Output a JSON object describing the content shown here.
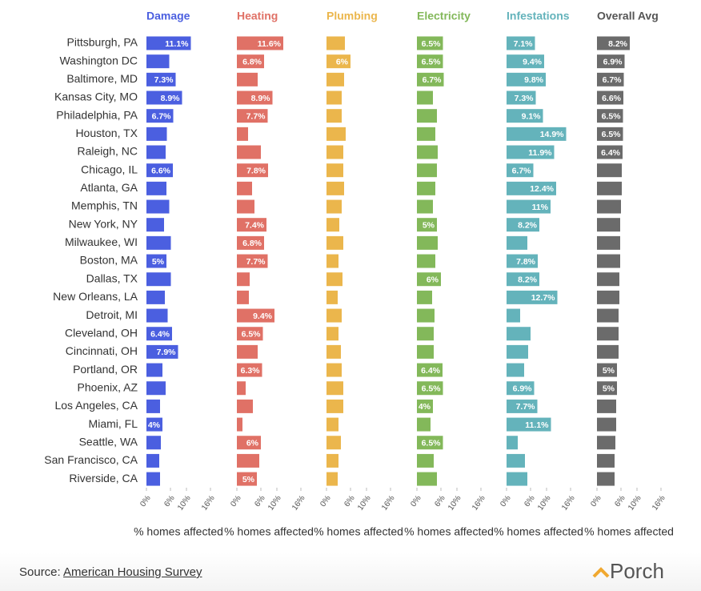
{
  "chart_data": {
    "type": "bar",
    "orientation": "horizontal",
    "categories": [
      "Pittsburgh, PA",
      "Washington DC",
      "Baltimore, MD",
      "Kansas City, MO",
      "Philadelphia, PA",
      "Houston, TX",
      "Raleigh, NC",
      "Chicago, IL",
      "Atlanta, GA",
      "Memphis, TN",
      "New York, NY",
      "Milwaukee, WI",
      "Boston, MA",
      "Dallas, TX",
      "New Orleans, LA",
      "Detroit, MI",
      "Cleveland, OH",
      "Cincinnati, OH",
      "Portland, OR",
      "Phoenix, AZ",
      "Los Angeles, CA",
      "Miami, FL",
      "Seattle, WA",
      "San Francisco, CA",
      "Riverside, CA"
    ],
    "series": [
      {
        "name": "Damage",
        "color": "#4b5fe0",
        "values": [
          11.1,
          5.7,
          7.3,
          8.9,
          6.7,
          5.1,
          4.8,
          6.6,
          5.0,
          5.7,
          4.4,
          6.1,
          5,
          6.1,
          4.6,
          5.3,
          6.4,
          7.9,
          4.0,
          4.8,
          3.4,
          4,
          3.6,
          3.2,
          3.4
        ],
        "value_labels": [
          "11.1%",
          null,
          "7.3%",
          "8.9%",
          "6.7%",
          null,
          null,
          "6.6%",
          null,
          null,
          null,
          null,
          "5%",
          null,
          null,
          null,
          "6.4%",
          "7.9%",
          null,
          null,
          null,
          "4%",
          null,
          null,
          null
        ]
      },
      {
        "name": "Heating",
        "color": "#e07166",
        "values": [
          11.6,
          6.8,
          5.2,
          8.9,
          7.7,
          2.8,
          6.0,
          7.8,
          3.8,
          4.4,
          7.4,
          6.8,
          7.7,
          3.2,
          3.0,
          9.4,
          6.5,
          5.2,
          6.3,
          2.2,
          4.0,
          1.4,
          6,
          5.6,
          5
        ],
        "value_labels": [
          "11.6%",
          "6.8%",
          null,
          "8.9%",
          "7.7%",
          null,
          null,
          "7.8%",
          null,
          null,
          "7.4%",
          "6.8%",
          "7.7%",
          null,
          null,
          "9.4%",
          "6.5%",
          null,
          "6.3%",
          null,
          null,
          null,
          "6%",
          null,
          "5%"
        ]
      },
      {
        "name": "Plumbing",
        "color": "#ebb64c",
        "values": [
          4.6,
          6,
          4.4,
          3.8,
          3.8,
          4.8,
          4.2,
          4.2,
          4.4,
          3.8,
          3.2,
          4.2,
          3.0,
          4.0,
          2.8,
          3.8,
          3.0,
          3.6,
          3.8,
          4.2,
          4.2,
          3.0,
          3.6,
          3.0,
          2.8
        ],
        "value_labels": [
          null,
          "6%",
          null,
          null,
          null,
          null,
          null,
          null,
          null,
          null,
          null,
          null,
          null,
          null,
          null,
          null,
          null,
          null,
          null,
          null,
          null,
          null,
          null,
          null,
          null
        ]
      },
      {
        "name": "Electricity",
        "color": "#83b85a",
        "values": [
          6.5,
          6.5,
          6.7,
          4.0,
          5.0,
          4.6,
          5.2,
          5.0,
          4.6,
          4.0,
          5,
          5.2,
          4.6,
          6,
          3.8,
          4.4,
          4.2,
          4.2,
          6.4,
          6.5,
          4,
          3.4,
          6.5,
          4.2,
          5.0
        ],
        "value_labels": [
          "6.5%",
          "6.5%",
          "6.7%",
          null,
          null,
          null,
          null,
          null,
          null,
          null,
          "5%",
          null,
          null,
          "6%",
          null,
          null,
          null,
          null,
          "6.4%",
          "6.5%",
          "4%",
          null,
          "6.5%",
          null,
          null
        ]
      },
      {
        "name": "Infestations",
        "color": "#64b3bb",
        "values": [
          7.1,
          9.4,
          9.8,
          7.3,
          9.1,
          14.9,
          11.9,
          6.7,
          12.4,
          11,
          8.2,
          5.2,
          7.8,
          8.2,
          12.7,
          3.4,
          6.0,
          5.4,
          4.4,
          6.9,
          7.7,
          11.1,
          2.8,
          4.6,
          5.2
        ],
        "value_labels": [
          "7.1%",
          "9.4%",
          "9.8%",
          "7.3%",
          "9.1%",
          "14.9%",
          "11.9%",
          "6.7%",
          "12.4%",
          "11%",
          "8.2%",
          null,
          "7.8%",
          "8.2%",
          "12.7%",
          null,
          null,
          null,
          null,
          "6.9%",
          "7.7%",
          "11.1%",
          null,
          null,
          null
        ]
      },
      {
        "name": "Overall Avg",
        "color": "#6b6b6b",
        "values": [
          8.2,
          6.9,
          6.7,
          6.6,
          6.5,
          6.5,
          6.4,
          6.2,
          6.2,
          6.0,
          5.8,
          5.8,
          5.8,
          5.6,
          5.6,
          5.4,
          5.4,
          5.4,
          5,
          5,
          4.8,
          4.8,
          4.6,
          4.4,
          4.4
        ],
        "value_labels": [
          "8.2%",
          "6.9%",
          "6.7%",
          "6.6%",
          "6.5%",
          "6.5%",
          "6.4%",
          null,
          null,
          null,
          null,
          null,
          null,
          null,
          null,
          null,
          null,
          null,
          "5%",
          "5%",
          null,
          null,
          null,
          null,
          null
        ]
      }
    ],
    "xlim": [
      0,
      16
    ],
    "xticks": [
      {
        "value": 0,
        "label": "0%"
      },
      {
        "value": 6,
        "label": "6%"
      },
      {
        "value": 10,
        "label": "10%"
      },
      {
        "value": 16,
        "label": "16%"
      }
    ],
    "xlabel": "% homes affected"
  },
  "source": {
    "prefix": "Source:",
    "link": "American Housing Survey"
  },
  "logo": "Porch"
}
